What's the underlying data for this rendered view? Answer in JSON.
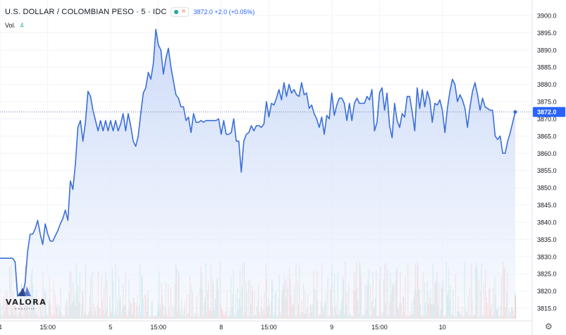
{
  "header": {
    "symbol_title": "U.S. DOLLAR / COLOMBIAN PESO · 5 · IDC",
    "quote": "3872.0 +2.0 (+0.05%)",
    "volume_label": "Vol.",
    "volume_value": "4"
  },
  "logo": {
    "name": "VALORA",
    "subtitle": "ANALITIK"
  },
  "settings_icon": "gear-icon",
  "colors": {
    "line": "#3a6fd8",
    "fill_top": "#c9d8f8",
    "fill_bottom": "#f2f6fd",
    "price_label_bg": "#2962ff",
    "volume_up": "#26a69a",
    "volume_down": "#ef5350"
  },
  "chart_data": {
    "type": "area",
    "title": "U.S. DOLLAR / COLOMBIAN PESO · 5 · IDC",
    "ylabel": "",
    "xlabel": "",
    "ylim": [
      3812,
      3901
    ],
    "y_ticks": [
      3900.0,
      3895.0,
      3890.0,
      3885.0,
      3880.0,
      3875.0,
      3870.0,
      3865.0,
      3860.0,
      3855.0,
      3850.0,
      3845.0,
      3840.0,
      3835.0,
      3830.0,
      3825.0,
      3820.0,
      3815.0
    ],
    "x_ticks": [
      {
        "label": "4",
        "idx": 0
      },
      {
        "label": "15:00",
        "idx": 19
      },
      {
        "label": "5",
        "idx": 44
      },
      {
        "label": "15:00",
        "idx": 63
      },
      {
        "label": "8",
        "idx": 88
      },
      {
        "label": "15:00",
        "idx": 107
      },
      {
        "label": "9",
        "idx": 132
      },
      {
        "label": "15:00",
        "idx": 151
      },
      {
        "label": "10",
        "idx": 176
      }
    ],
    "last_price": 3872.0,
    "last_price_label": "3872.0",
    "grid": true,
    "close": [
      3829.5,
      3829.5,
      3829.5,
      3829.5,
      3829.5,
      3829.5,
      3828.5,
      3818.5,
      3819.5,
      3819,
      3822.5,
      3831.5,
      3836.5,
      3836.5,
      3838,
      3840.5,
      3836.5,
      3833.5,
      3839.5,
      3836.5,
      3834.5,
      3834.5,
      3836,
      3837.5,
      3839.5,
      3841,
      3843.5,
      3840.5,
      3852,
      3849.5,
      3857,
      3867.5,
      3869.5,
      3863.5,
      3869,
      3878,
      3876.5,
      3872.5,
      3869.5,
      3866.5,
      3869.5,
      3866.5,
      3869.5,
      3866.5,
      3869.5,
      3866.5,
      3869.5,
      3866.5,
      3868.5,
      3871.5,
      3866.5,
      3871.5,
      3868,
      3863.5,
      3862,
      3865,
      3871.5,
      3877.5,
      3879,
      3883.5,
      3881.5,
      3886,
      3896,
      3891.5,
      3890,
      3883,
      3887.5,
      3890.5,
      3885,
      3881,
      3877,
      3876,
      3873.5,
      3873.5,
      3869.5,
      3870.5,
      3866,
      3871.5,
      3869,
      3869,
      3869.5,
      3869,
      3869.5,
      3869.5,
      3869.5,
      3869.5,
      3869.5,
      3870,
      3865.5,
      3869.5,
      3865.5,
      3865.5,
      3866,
      3870,
      3863.5,
      3863.5,
      3854.5,
      3863.5,
      3865.5,
      3866,
      3868,
      3866.5,
      3868,
      3868,
      3867.5,
      3868.5,
      3875,
      3870.5,
      3874.5,
      3874,
      3876,
      3878.5,
      3875.5,
      3880.5,
      3876.5,
      3880,
      3877.5,
      3878.5,
      3877,
      3876.5,
      3880.5,
      3877,
      3877.5,
      3873,
      3874,
      3871.5,
      3870,
      3867.5,
      3870.5,
      3865.5,
      3871,
      3870,
      3877.5,
      3871,
      3874,
      3876,
      3876,
      3874.5,
      3869.5,
      3874.5,
      3869.5,
      3874.5,
      3876,
      3874.5,
      3874.5,
      3874.5,
      3876.5,
      3875.5,
      3878.5,
      3866.5,
      3869,
      3877.5,
      3879,
      3872.5,
      3877.5,
      3868,
      3864.5,
      3874.5,
      3869.5,
      3867.5,
      3871.5,
      3870.5,
      3876.5,
      3876.5,
      3872,
      3866.5,
      3879,
      3873,
      3878.5,
      3873.5,
      3878,
      3875.5,
      3869,
      3874.5,
      3874,
      3875.5,
      3872.5,
      3866,
      3873,
      3878,
      3881.5,
      3880,
      3875,
      3877,
      3875.5,
      3873,
      3867.5,
      3873.5,
      3878,
      3880.5,
      3877,
      3872.5,
      3876,
      3873.5,
      3873,
      3872.5,
      3872.5,
      3865,
      3864,
      3865,
      3860,
      3860,
      3863.5,
      3866,
      3869,
      3872
    ]
  }
}
